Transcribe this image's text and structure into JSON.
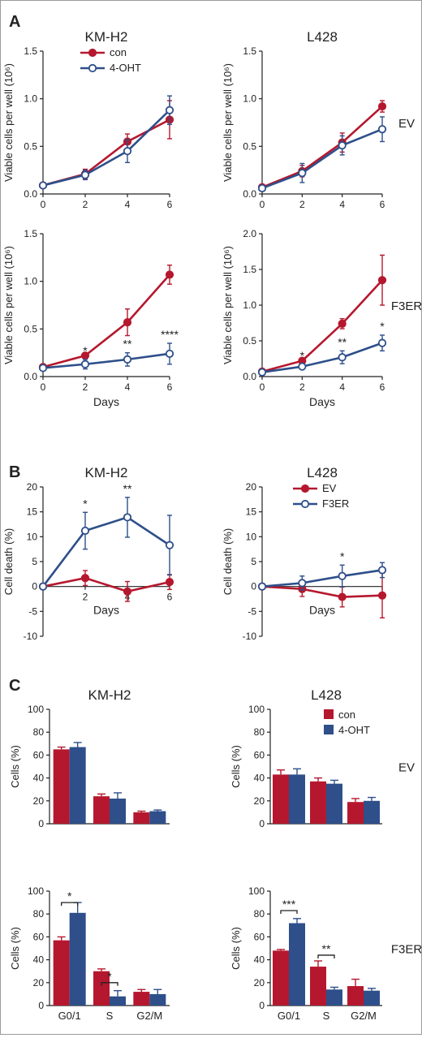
{
  "figure": {
    "panel_labels": [
      "A",
      "B",
      "C"
    ],
    "colors": {
      "red": "#b5182e",
      "blue": "#2e4f8a",
      "axis": "#222222"
    }
  },
  "chart_data": [
    {
      "id": "A1",
      "type": "line",
      "title": "KM-H2",
      "ylabel": "Viable cells per well (10⁶)",
      "xlabel": "",
      "x": [
        0,
        2,
        4,
        6
      ],
      "xticks": [
        "0",
        "2",
        "4",
        "6"
      ],
      "ylim": [
        0,
        1.5
      ],
      "yticks": [
        "0.0",
        "0.5",
        "1.0",
        "1.5"
      ],
      "legend": {
        "placement": "top-right",
        "entries": [
          "con",
          "4-OHT"
        ]
      },
      "series": [
        {
          "name": "con",
          "color": "#b5182e",
          "marker": "filled",
          "values": [
            0.09,
            0.21,
            0.55,
            0.78
          ],
          "errors": [
            0.02,
            0.05,
            0.08,
            0.2
          ]
        },
        {
          "name": "4-OHT",
          "color": "#2e4f8a",
          "marker": "open",
          "values": [
            0.09,
            0.2,
            0.45,
            0.88
          ],
          "errors": [
            0.02,
            0.05,
            0.12,
            0.15
          ]
        }
      ],
      "annotations": []
    },
    {
      "id": "A2",
      "type": "line",
      "title": "L428",
      "ylabel": "Viable cells per well (10⁶)",
      "xlabel": "",
      "side_label": "EV",
      "x": [
        0,
        2,
        4,
        6
      ],
      "xticks": [
        "0",
        "2",
        "4",
        "6"
      ],
      "ylim": [
        0,
        1.5
      ],
      "yticks": [
        "0.0",
        "0.5",
        "1.0",
        "1.5"
      ],
      "series": [
        {
          "color": "#b5182e",
          "marker": "filled",
          "values": [
            0.07,
            0.24,
            0.54,
            0.92
          ],
          "errors": [
            0.02,
            0.06,
            0.1,
            0.06
          ]
        },
        {
          "color": "#2e4f8a",
          "marker": "open",
          "values": [
            0.06,
            0.22,
            0.51,
            0.68
          ],
          "errors": [
            0.02,
            0.1,
            0.1,
            0.13
          ]
        }
      ],
      "annotations": []
    },
    {
      "id": "A3",
      "type": "line",
      "title": "",
      "ylabel": "Viable cells per well (10⁶)",
      "xlabel": "Days",
      "x": [
        0,
        2,
        4,
        6
      ],
      "xticks": [
        "0",
        "2",
        "4",
        "6"
      ],
      "ylim": [
        0,
        1.5
      ],
      "yticks": [
        "0.0",
        "0.5",
        "1.0",
        "1.5"
      ],
      "series": [
        {
          "color": "#b5182e",
          "marker": "filled",
          "values": [
            0.1,
            0.22,
            0.57,
            1.07
          ],
          "errors": [
            0.02,
            0.03,
            0.14,
            0.1
          ]
        },
        {
          "color": "#2e4f8a",
          "marker": "open",
          "values": [
            0.09,
            0.13,
            0.18,
            0.24
          ],
          "errors": [
            0.02,
            0.05,
            0.07,
            0.11
          ]
        }
      ],
      "annotations": [
        {
          "x": 2,
          "text": "*"
        },
        {
          "x": 4,
          "text": "**"
        },
        {
          "x": 6,
          "text": "****"
        }
      ]
    },
    {
      "id": "A4",
      "type": "line",
      "title": "",
      "ylabel": "Viable cells per well (10⁶)",
      "xlabel": "Days",
      "side_label": "F3ER",
      "x": [
        0,
        2,
        4,
        6
      ],
      "xticks": [
        "0",
        "2",
        "4",
        "6"
      ],
      "ylim": [
        0,
        2.0
      ],
      "yticks": [
        "0.0",
        "0.5",
        "1.0",
        "1.5",
        "2.0"
      ],
      "series": [
        {
          "color": "#b5182e",
          "marker": "filled",
          "values": [
            0.07,
            0.22,
            0.74,
            1.35
          ],
          "errors": [
            0.02,
            0.03,
            0.07,
            0.35
          ]
        },
        {
          "color": "#2e4f8a",
          "marker": "open",
          "values": [
            0.06,
            0.14,
            0.27,
            0.47
          ],
          "errors": [
            0.02,
            0.03,
            0.09,
            0.11
          ]
        }
      ],
      "annotations": [
        {
          "x": 2,
          "text": "*"
        },
        {
          "x": 4,
          "text": "**"
        },
        {
          "x": 6,
          "text": "*"
        }
      ]
    },
    {
      "id": "B1",
      "type": "line",
      "title": "KM-H2",
      "ylabel": "Cell death (%)",
      "xlabel": "Days",
      "x": [
        0,
        2,
        4,
        6
      ],
      "xticks": [
        "2",
        "4",
        "6"
      ],
      "ylim": [
        -10,
        20
      ],
      "yticks": [
        "-10",
        "-5",
        "0",
        "5",
        "10",
        "15",
        "20"
      ],
      "series": [
        {
          "color": "#b5182e",
          "marker": "filled",
          "values": [
            0,
            1.7,
            -1,
            0.9
          ],
          "errors": [
            0,
            1.5,
            2,
            1.5
          ]
        },
        {
          "color": "#2e4f8a",
          "marker": "open",
          "values": [
            0,
            11.2,
            13.9,
            8.3
          ],
          "errors": [
            0,
            3.7,
            4,
            6
          ]
        }
      ],
      "annotations": [
        {
          "x": 2,
          "text": "*"
        },
        {
          "x": 4,
          "text": "**"
        }
      ]
    },
    {
      "id": "B2",
      "type": "line",
      "title": "L428",
      "ylabel": "Cell death (%)",
      "xlabel": "Days",
      "x": [
        0,
        2,
        4,
        6
      ],
      "xticks": [],
      "ylim": [
        -10,
        20
      ],
      "yticks": [
        "-10",
        "-5",
        "0",
        "5",
        "10",
        "15",
        "20"
      ],
      "legend": {
        "placement": "top-right",
        "entries": [
          "EV",
          "F3ER"
        ]
      },
      "series": [
        {
          "name": "EV",
          "color": "#b5182e",
          "marker": "filled",
          "values": [
            0,
            -0.5,
            -2.1,
            -1.8
          ],
          "errors": [
            0,
            1.5,
            2,
            4.5
          ]
        },
        {
          "name": "F3ER",
          "color": "#2e4f8a",
          "marker": "open",
          "values": [
            0,
            0.7,
            2.1,
            3.3
          ],
          "errors": [
            0,
            1.4,
            2.2,
            1.5
          ]
        }
      ],
      "annotations": [
        {
          "x": 4,
          "text": "*"
        }
      ]
    },
    {
      "id": "C1",
      "type": "bar",
      "title": "KM-H2",
      "ylabel": "Cells (%)",
      "categories": [
        "G0/1",
        "S",
        "G2/M"
      ],
      "ylim": [
        0,
        100
      ],
      "yticks": [
        "0",
        "20",
        "40",
        "60",
        "80",
        "100"
      ],
      "show_xticks": false,
      "series": [
        {
          "color": "#b5182e",
          "values": [
            65,
            24,
            10
          ],
          "errors": [
            2,
            2,
            1
          ]
        },
        {
          "color": "#2e4f8a",
          "values": [
            67,
            22,
            11
          ],
          "errors": [
            4,
            5,
            1
          ]
        }
      ],
      "brackets": []
    },
    {
      "id": "C2",
      "type": "bar",
      "title": "L428",
      "ylabel": "Cells (%)",
      "categories": [
        "G0/1",
        "S",
        "G2/M"
      ],
      "ylim": [
        0,
        100
      ],
      "side_label": "EV",
      "yticks": [
        "0",
        "20",
        "40",
        "60",
        "80",
        "100"
      ],
      "show_xticks": false,
      "legend": {
        "placement": "top-right",
        "entries": [
          "con",
          "4-OHT"
        ]
      },
      "series": [
        {
          "name": "con",
          "color": "#b5182e",
          "values": [
            43,
            37,
            19
          ],
          "errors": [
            4,
            3,
            3
          ]
        },
        {
          "name": "4-OHT",
          "color": "#2e4f8a",
          "values": [
            43,
            35,
            20
          ],
          "errors": [
            5,
            3,
            3
          ]
        }
      ],
      "brackets": []
    },
    {
      "id": "C3",
      "type": "bar",
      "title": "",
      "ylabel": "Cells (%)",
      "categories": [
        "G0/1",
        "S",
        "G2/M"
      ],
      "ylim": [
        0,
        100
      ],
      "yticks": [
        "0",
        "20",
        "40",
        "60",
        "80",
        "100"
      ],
      "show_xticks": true,
      "series": [
        {
          "color": "#b5182e",
          "values": [
            57,
            30,
            12
          ],
          "errors": [
            3,
            2,
            2
          ]
        },
        {
          "color": "#2e4f8a",
          "values": [
            81,
            8,
            10
          ],
          "errors": [
            9,
            5,
            4
          ]
        }
      ],
      "brackets": [
        {
          "index": 0,
          "y": 90,
          "text": "*"
        },
        {
          "index": 1,
          "y": 20,
          "text": "*"
        }
      ]
    },
    {
      "id": "C4",
      "type": "bar",
      "title": "",
      "ylabel": "Cells (%)",
      "categories": [
        "G0/1",
        "S",
        "G2/M"
      ],
      "ylim": [
        0,
        100
      ],
      "side_label": "F3ER",
      "yticks": [
        "0",
        "20",
        "40",
        "60",
        "80",
        "100"
      ],
      "show_xticks": true,
      "series": [
        {
          "color": "#b5182e",
          "values": [
            48,
            34,
            17
          ],
          "errors": [
            1,
            5,
            6
          ]
        },
        {
          "color": "#2e4f8a",
          "values": [
            72,
            14,
            13
          ],
          "errors": [
            4,
            2,
            2
          ]
        }
      ],
      "brackets": [
        {
          "index": 0,
          "y": 83,
          "text": "***"
        },
        {
          "index": 1,
          "y": 44,
          "text": "**"
        }
      ]
    }
  ]
}
